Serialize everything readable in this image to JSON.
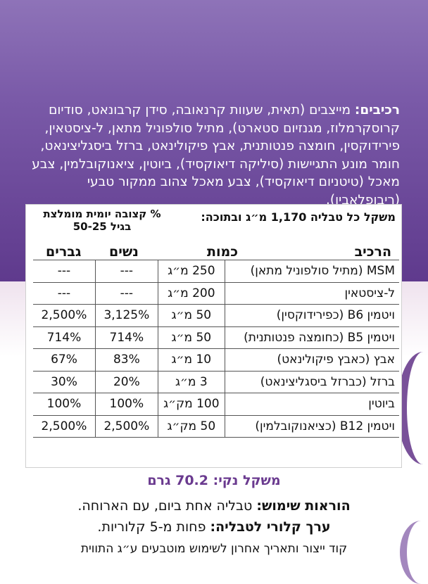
{
  "ingredients": {
    "label": "רכיבים:",
    "text": "מייצבים (תאית, שעוות קרנאובה, סידן קרבונאט, סודיום קרוסקרמלוז, מגנזיום סטארט), מתיל סולפוניל מתאן, ל-ציסטאין, פירידוקסין, חומצה פנטותנית, אבץ פיקולינאט, ברזל ביסגליצינאט, חומר מונע התגיישות (סיליקה דיאוקסיד), ביוטין, ציאנוקובלמין, צבע מאכל (טיטניום דיאוקסיד), צבע מאכל צהוב ממקור טבעי (ריבופלאבין)."
  },
  "table": {
    "weight_header": "משקל כל טבליה 1,170 מ״ג ובתוכה:",
    "daily_header": "% קצובה יומית מומלצת בגיל 50-25",
    "col_component": "הרכיב",
    "col_amount": "כמות",
    "col_women": "נשים",
    "col_men": "גברים",
    "rows": [
      {
        "name": "MSM (מתיל סולפוניל מתאן)",
        "amount": "250 מ״ג",
        "women": "---",
        "men": "---"
      },
      {
        "name": "ל-ציסטאין",
        "amount": "200 מ״ג",
        "women": "---",
        "men": "---"
      },
      {
        "name": "ויטמין B6 (כפירידוקסין)",
        "amount": "50 מ״ג",
        "women": "3,125%",
        "men": "2,500%"
      },
      {
        "name": "ויטמין B5 (כחומצה פנטותנית)",
        "amount": "50 מ״ג",
        "women": "714%",
        "men": "714%"
      },
      {
        "name": "אבץ (כאבץ פיקולינאט)",
        "amount": "10 מ״ג",
        "women": "83%",
        "men": "67%"
      },
      {
        "name": "ברזל (כברזל ביסגליצינאט)",
        "amount": "3 מ״ג",
        "women": "20%",
        "men": "30%"
      },
      {
        "name": "ביוטין",
        "amount": "100 מק״ג",
        "women": "100%",
        "men": "100%"
      },
      {
        "name": "ויטמין B12 (כציאנוקובלמין)",
        "amount": "50 מק״ג",
        "women": "2,500%",
        "men": "2,500%"
      }
    ]
  },
  "net_weight": "משקל נקי: 70.2 גרם",
  "usage": {
    "label": "הוראות שימוש:",
    "text": " טבליה אחת ביום, עם הארוחה."
  },
  "calories": {
    "label": "ערך קלורי לטבליה:",
    "text": " פחות מ-5 קלוריות."
  },
  "footer": "קוד ייצור ותאריך אחרון לשימוש מוטבעים ע״ג התווית",
  "colors": {
    "purple_band": "#6b4697",
    "net_weight_text": "#6a3a8f"
  }
}
